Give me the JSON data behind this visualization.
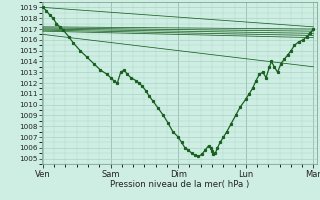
{
  "bg_color": "#ceeee4",
  "grid_color": "#aad4c4",
  "line_color": "#1a6020",
  "xlabel": "Pression niveau de la mer( hPa )",
  "ylim": [
    1004.5,
    1019.5
  ],
  "yticks": [
    1005,
    1006,
    1007,
    1008,
    1009,
    1010,
    1011,
    1012,
    1013,
    1014,
    1015,
    1016,
    1017,
    1018,
    1019
  ],
  "xtick_labels": [
    "Ven",
    "Sam",
    "Dim",
    "Lun",
    "Mar"
  ],
  "xtick_positions": [
    0,
    1,
    2,
    3,
    4
  ],
  "straight_lines": [
    {
      "x": [
        0.0,
        4.0
      ],
      "y": [
        1019.0,
        1017.2
      ]
    },
    {
      "x": [
        0.0,
        4.0
      ],
      "y": [
        1017.2,
        1017.0
      ]
    },
    {
      "x": [
        0.0,
        4.0
      ],
      "y": [
        1017.1,
        1016.8
      ]
    },
    {
      "x": [
        0.0,
        4.0
      ],
      "y": [
        1017.0,
        1016.6
      ]
    },
    {
      "x": [
        0.0,
        4.0
      ],
      "y": [
        1016.9,
        1016.4
      ]
    },
    {
      "x": [
        0.0,
        4.0
      ],
      "y": [
        1016.8,
        1016.2
      ]
    },
    {
      "x": [
        0.0,
        4.0
      ],
      "y": [
        1016.5,
        1013.5
      ]
    }
  ],
  "main_line_x": [
    0.0,
    0.05,
    0.1,
    0.15,
    0.2,
    0.25,
    0.3,
    0.38,
    0.45,
    0.55,
    0.65,
    0.75,
    0.85,
    0.95,
    1.0,
    1.05,
    1.1,
    1.15,
    1.2,
    1.25,
    1.3,
    1.38,
    1.42,
    1.47,
    1.52,
    1.57,
    1.63,
    1.7,
    1.78,
    1.85,
    1.92,
    2.0,
    2.05,
    2.1,
    2.15,
    2.2,
    2.25,
    2.3,
    2.35,
    2.4,
    2.45,
    2.48,
    2.5,
    2.52,
    2.55,
    2.58,
    2.62,
    2.67,
    2.72,
    2.78,
    2.85,
    2.92,
    3.0,
    3.05,
    3.1,
    3.15,
    3.2,
    3.25,
    3.3,
    3.35,
    3.38,
    3.42,
    3.47,
    3.52,
    3.57,
    3.62,
    3.67,
    3.72,
    3.78,
    3.85,
    3.9,
    3.95,
    4.0
  ],
  "main_line_y": [
    1019.0,
    1018.7,
    1018.3,
    1018.0,
    1017.5,
    1017.2,
    1016.9,
    1016.3,
    1015.7,
    1015.0,
    1014.4,
    1013.8,
    1013.2,
    1012.8,
    1012.5,
    1012.2,
    1012.0,
    1013.0,
    1013.2,
    1012.8,
    1012.5,
    1012.2,
    1012.0,
    1011.7,
    1011.3,
    1010.8,
    1010.3,
    1009.7,
    1009.0,
    1008.3,
    1007.5,
    1007.0,
    1006.5,
    1006.0,
    1005.8,
    1005.5,
    1005.3,
    1005.2,
    1005.4,
    1005.8,
    1006.2,
    1006.0,
    1005.7,
    1005.4,
    1005.5,
    1006.0,
    1006.5,
    1007.0,
    1007.5,
    1008.2,
    1009.0,
    1009.8,
    1010.5,
    1011.0,
    1011.5,
    1012.2,
    1012.8,
    1013.0,
    1012.5,
    1013.5,
    1014.0,
    1013.5,
    1013.0,
    1013.8,
    1014.2,
    1014.6,
    1015.0,
    1015.5,
    1015.8,
    1016.0,
    1016.3,
    1016.6,
    1017.0
  ]
}
